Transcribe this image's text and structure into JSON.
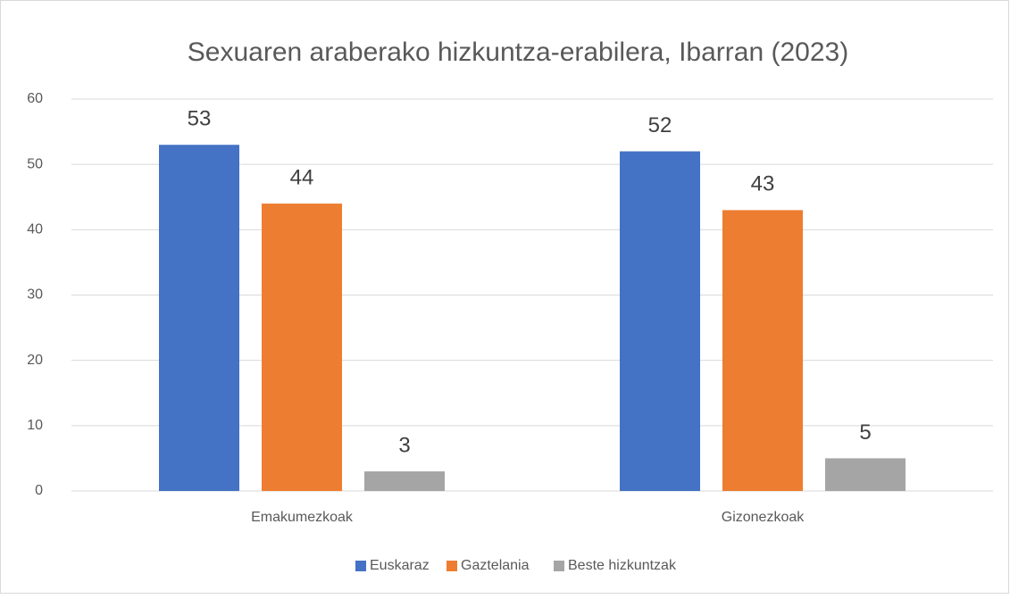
{
  "chart_data": {
    "type": "bar",
    "title": "Sexuaren araberako hizkuntza-erabilera, Ibarran (2023)",
    "categories": [
      "Emakumezkoak",
      "Gizonezkoak"
    ],
    "series": [
      {
        "name": "Euskaraz",
        "color": "#4472c4",
        "values": [
          53,
          52
        ]
      },
      {
        "name": "Gaztelania",
        "color": "#ed7d31",
        "values": [
          44,
          43
        ]
      },
      {
        "name": "Beste hizkuntzak",
        "color": "#a5a5a5",
        "values": [
          3,
          5
        ]
      }
    ],
    "ylim": [
      0,
      60
    ],
    "yticks": [
      0,
      10,
      20,
      30,
      40,
      50,
      60
    ],
    "grid": true,
    "legend": "bottom"
  }
}
